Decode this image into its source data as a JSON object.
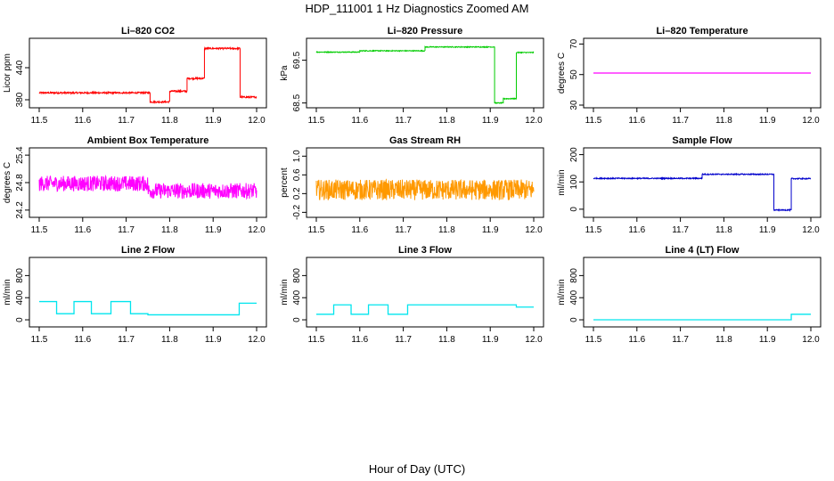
{
  "figure": {
    "title": "HDP_111001  1 Hz Diagnostics Zoomed AM",
    "xlabel": "Hour of Day (UTC)"
  },
  "chart_data": [
    {
      "type": "line",
      "title": "Li–820 CO2",
      "ylabel": "Licor ppm",
      "color": "#ff0000",
      "xlim": [
        11.5,
        12.0
      ],
      "ylim": [
        370,
        490
      ],
      "x_ticks": [
        "11.5",
        "11.6",
        "11.7",
        "11.8",
        "11.9",
        "12.0"
      ],
      "y_ticks": [
        "380",
        "440"
      ],
      "noise": 1.5,
      "segments": [
        [
          11.5,
          11.755,
          393
        ],
        [
          11.755,
          11.8,
          376
        ],
        [
          11.8,
          11.84,
          396
        ],
        [
          11.84,
          11.88,
          420
        ],
        [
          11.88,
          11.962,
          476
        ],
        [
          11.962,
          12.0,
          385
        ]
      ]
    },
    {
      "type": "line",
      "title": "Li–820 Pressure",
      "ylabel": "kPa",
      "color": "#00cc00",
      "xlim": [
        11.5,
        12.0
      ],
      "ylim": [
        68.45,
        69.95
      ],
      "x_ticks": [
        "11.5",
        "11.6",
        "11.7",
        "11.8",
        "11.9",
        "12.0"
      ],
      "y_ticks": [
        "68.5",
        "69.5"
      ],
      "noise": 0.01,
      "segments": [
        [
          11.5,
          11.6,
          69.69
        ],
        [
          11.6,
          11.75,
          69.72
        ],
        [
          11.75,
          11.91,
          69.81
        ],
        [
          11.91,
          11.93,
          68.5
        ],
        [
          11.93,
          11.96,
          68.6
        ],
        [
          11.96,
          12.0,
          69.68
        ]
      ]
    },
    {
      "type": "line",
      "title": "Li–820 Temperature",
      "ylabel": "degrees C",
      "color": "#ff00ff",
      "xlim": [
        11.5,
        12.0
      ],
      "ylim": [
        30,
        72
      ],
      "x_ticks": [
        "11.5",
        "11.6",
        "11.7",
        "11.8",
        "11.9",
        "12.0"
      ],
      "y_ticks": [
        "30",
        "50",
        "70"
      ],
      "noise": 0,
      "segments": [
        [
          11.5,
          12.0,
          51
        ]
      ]
    },
    {
      "type": "line",
      "title": "Ambient Box Temperature",
      "ylabel": "degrees C",
      "color": "#ff00ff",
      "xlim": [
        11.5,
        12.0
      ],
      "ylim": [
        24.1,
        25.5
      ],
      "x_ticks": [
        "11.5",
        "11.6",
        "11.7",
        "11.8",
        "11.9",
        "12.0"
      ],
      "y_ticks": [
        "24.2",
        "24.8",
        "25.4"
      ],
      "noise": 0.17,
      "segments": [
        [
          11.5,
          11.75,
          24.78
        ],
        [
          11.75,
          12.0,
          24.62
        ]
      ]
    },
    {
      "type": "line",
      "title": "Gas Stream RH",
      "ylabel": "percent",
      "color": "#ff9900",
      "xlim": [
        11.5,
        12.0
      ],
      "ylim": [
        -0.25,
        1.12
      ],
      "x_ticks": [
        "11.5",
        "11.6",
        "11.7",
        "11.8",
        "11.9",
        "12.0"
      ],
      "y_ticks": [
        "-0.2",
        "0.2",
        "0.6",
        "1.0"
      ],
      "noise": 0.22,
      "segments": [
        [
          11.5,
          12.0,
          0.28
        ]
      ]
    },
    {
      "type": "line",
      "title": "Sample Flow",
      "ylabel": "ml/min",
      "color": "#0000cc",
      "xlim": [
        11.5,
        12.0
      ],
      "ylim": [
        -20,
        215
      ],
      "x_ticks": [
        "11.5",
        "11.6",
        "11.7",
        "11.8",
        "11.9",
        "12.0"
      ],
      "y_ticks": [
        "0",
        "100",
        "200"
      ],
      "noise": 2,
      "segments": [
        [
          11.5,
          11.75,
          113
        ],
        [
          11.75,
          11.915,
          128
        ],
        [
          11.915,
          11.955,
          -3
        ],
        [
          11.955,
          12.0,
          112
        ]
      ]
    },
    {
      "type": "line",
      "title": "Line 2 Flow",
      "ylabel": "ml/min",
      "color": "#00e5ee",
      "xlim": [
        11.5,
        12.0
      ],
      "ylim": [
        -80,
        1080
      ],
      "x_ticks": [
        "11.5",
        "11.6",
        "11.7",
        "11.8",
        "11.9",
        "12.0"
      ],
      "y_ticks": [
        "0",
        "400",
        "800"
      ],
      "noise": 0,
      "segments": [
        [
          11.5,
          11.54,
          330
        ],
        [
          11.54,
          11.58,
          110
        ],
        [
          11.58,
          11.62,
          330
        ],
        [
          11.62,
          11.665,
          110
        ],
        [
          11.665,
          11.71,
          330
        ],
        [
          11.71,
          11.75,
          110
        ],
        [
          11.75,
          11.96,
          90
        ],
        [
          11.96,
          12.0,
          300
        ]
      ]
    },
    {
      "type": "line",
      "title": "Line 3 Flow",
      "ylabel": "ml/min",
      "color": "#00e5ee",
      "xlim": [
        11.5,
        12.0
      ],
      "ylim": [
        -80,
        1080
      ],
      "x_ticks": [
        "11.5",
        "11.6",
        "11.7",
        "11.8",
        "11.9",
        "12.0"
      ],
      "y_ticks": [
        "0",
        "400",
        "800"
      ],
      "noise": 0,
      "segments": [
        [
          11.5,
          11.54,
          100
        ],
        [
          11.54,
          11.58,
          270
        ],
        [
          11.58,
          11.62,
          100
        ],
        [
          11.62,
          11.665,
          270
        ],
        [
          11.665,
          11.71,
          100
        ],
        [
          11.71,
          11.96,
          270
        ],
        [
          11.96,
          12.0,
          230
        ]
      ]
    },
    {
      "type": "line",
      "title": "Line 4 (LT) Flow",
      "ylabel": "ml/min",
      "color": "#00e5ee",
      "xlim": [
        11.5,
        12.0
      ],
      "ylim": [
        -80,
        1080
      ],
      "x_ticks": [
        "11.5",
        "11.6",
        "11.7",
        "11.8",
        "11.9",
        "12.0"
      ],
      "y_ticks": [
        "0",
        "400",
        "800"
      ],
      "noise": 0,
      "segments": [
        [
          11.5,
          11.955,
          0
        ],
        [
          11.955,
          12.0,
          100
        ]
      ]
    }
  ]
}
